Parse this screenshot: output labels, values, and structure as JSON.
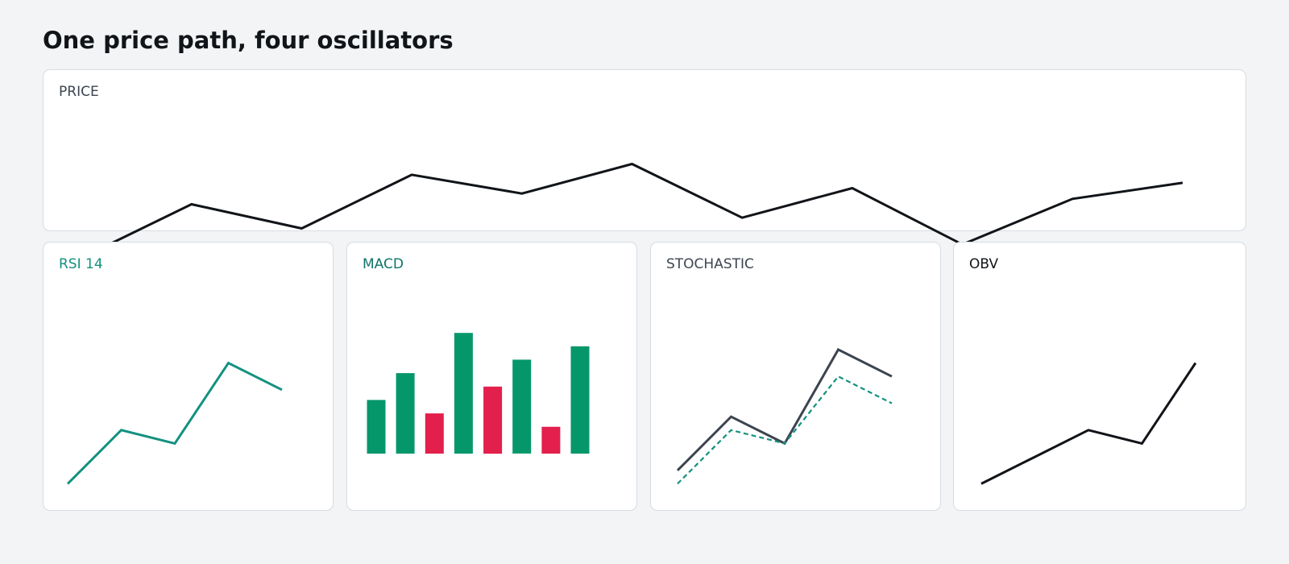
{
  "title": "One price path, four oscillators",
  "chart_data": [
    {
      "id": "price",
      "type": "line",
      "title": "PRICE",
      "title_color": "#3d4450",
      "series": [
        {
          "color": "#111418",
          "style": "solid",
          "values": [
            30,
            50,
            41,
            61,
            54,
            65,
            45,
            56,
            35,
            52,
            58
          ]
        }
      ],
      "ylim": [
        0,
        100
      ]
    },
    {
      "id": "rsi",
      "type": "line",
      "title": "RSI 14",
      "title_color": "#13917f",
      "series": [
        {
          "color": "#13917f",
          "style": "solid",
          "values": [
            20,
            40,
            35,
            65,
            55
          ]
        }
      ],
      "ylim": [
        0,
        100
      ]
    },
    {
      "id": "macd",
      "type": "bar",
      "title": "MACD",
      "title_color": "#0f7568",
      "positive_color": "#05976a",
      "negative_color": "#e31f4c",
      "values": [
        40,
        60,
        30,
        90,
        50,
        70,
        20,
        80
      ],
      "signs": [
        "pos",
        "pos",
        "neg",
        "pos",
        "neg",
        "pos",
        "neg",
        "pos"
      ],
      "ylim": [
        0,
        100
      ]
    },
    {
      "id": "stochastic",
      "type": "line",
      "title": "STOCHASTIC",
      "title_color": "#3d4450",
      "series": [
        {
          "color": "#3d4450",
          "style": "solid",
          "values": [
            25,
            45,
            35,
            70,
            60
          ]
        },
        {
          "color": "#13917f",
          "style": "dashed",
          "values": [
            20,
            40,
            35,
            60,
            50
          ]
        }
      ],
      "ylim": [
        0,
        100
      ]
    },
    {
      "id": "obv",
      "type": "line",
      "title": "OBV",
      "title_color": "#111418",
      "series": [
        {
          "color": "#111418",
          "style": "solid",
          "values": [
            20,
            30,
            40,
            35,
            65
          ]
        }
      ],
      "ylim": [
        0,
        100
      ]
    }
  ]
}
